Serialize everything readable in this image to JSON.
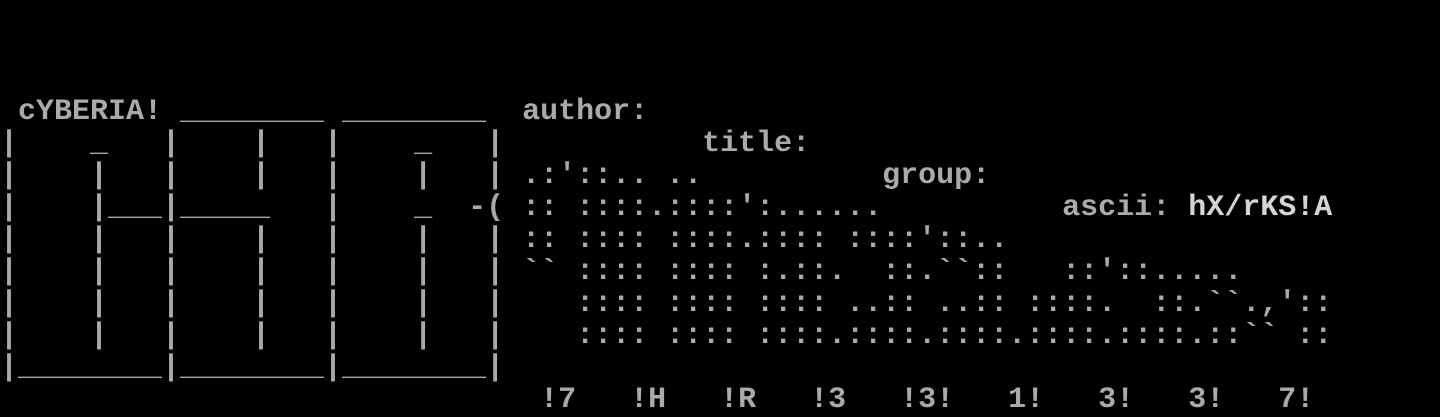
{
  "nfo": {
    "logo_text": "cYBERIA!",
    "labels": {
      "author": "author:",
      "title": "title:",
      "group": "group:",
      "ascii": "ascii:"
    },
    "values": {
      "author": "",
      "title": "",
      "group": "",
      "ascii": "hX/rKS!A"
    },
    "footer_code": "!7   !H   !R   !3   !3!   1!   3!   3!   7!"
  },
  "terminal": {
    "background": "#000000",
    "base_color": "#aaaaaa",
    "bright_color": "#d4d4d4",
    "columns": 80,
    "visible_rows": 13,
    "rows": [
      [],
      [],
      [],
      [
        {
          "t": " cYBERIA! ________ ________  author:",
          "s": "base"
        }
      ],
      [
        {
          "t": "|    _   |    |   |    _   |           title:",
          "s": "base"
        }
      ],
      [
        {
          "t": "|    |   |    |   |    |   | .:'::.. ..          group:",
          "s": "base"
        }
      ],
      [
        {
          "t": "|    |___|_____   |    _  -( :: ::::.::::':......          ascii: ",
          "s": "base"
        },
        {
          "t": "hX/rKS!A",
          "s": "bright"
        }
      ],
      [
        {
          "t": "|    |   |    |   |    |   | :: :::: ::::.:::: ::::'::..",
          "s": "base"
        }
      ],
      [
        {
          "t": "|    |   |    |   |    |   | `` :::: :::: :.::.  ::.``::   ::'::.....",
          "s": "base"
        }
      ],
      [
        {
          "t": "|    |   |    |   |    |   |    :::: :::: :::: ..:: ..:: ::::.  ::.``.,'::",
          "s": "base"
        }
      ],
      [
        {
          "t": "|    |   |    |   |    |   |    :::: :::: ::::.::::.::::.::::.::::.::`` ::",
          "s": "base"
        }
      ],
      [
        {
          "t": "|________|________|________|",
          "s": "base"
        }
      ],
      [
        {
          "t": "                              !7   !H   !R   !3   !3!   1!   3!   3!   7!",
          "s": "base"
        }
      ]
    ]
  }
}
